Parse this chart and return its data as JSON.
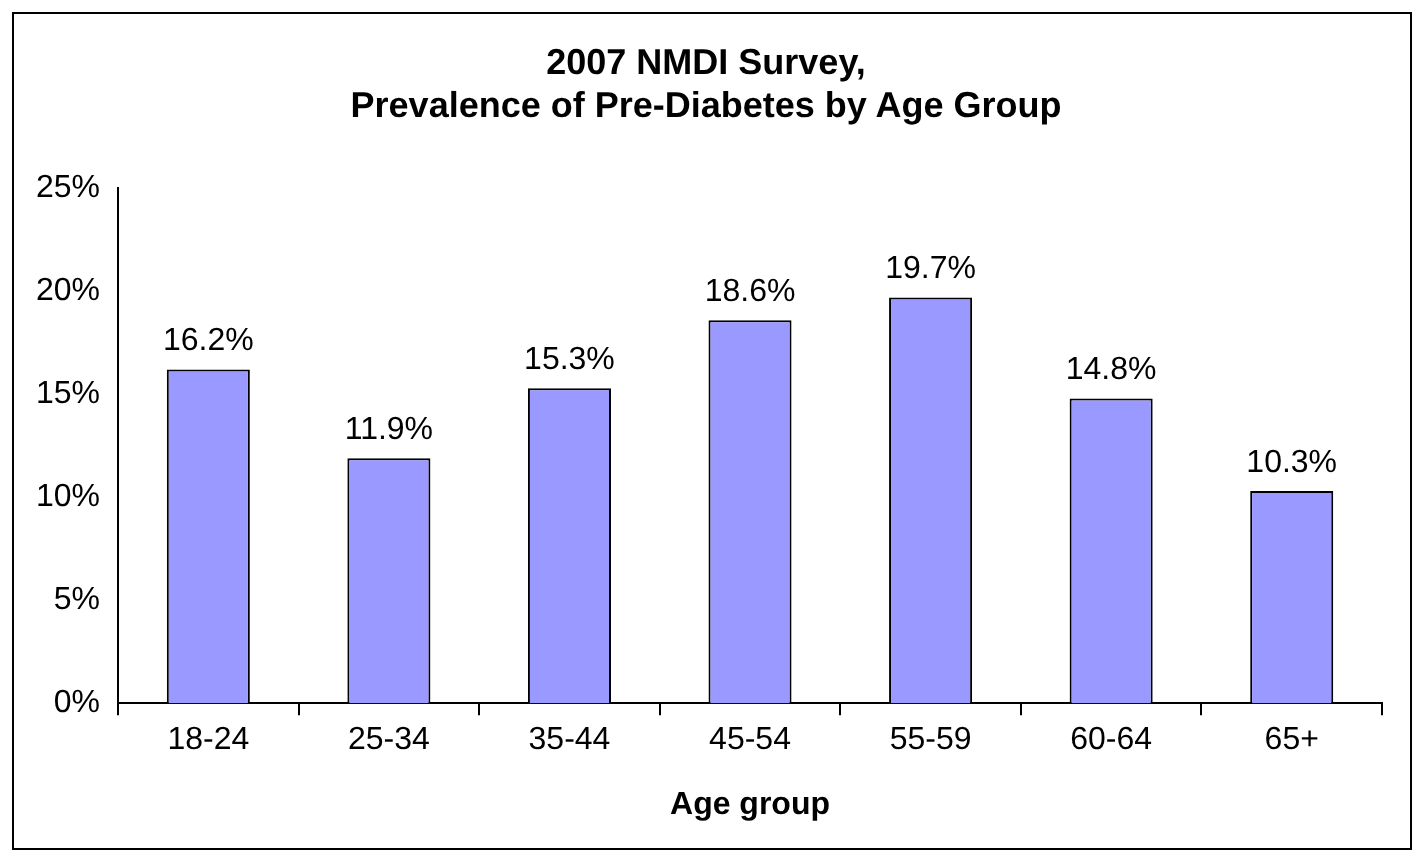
{
  "chart_data": {
    "type": "bar",
    "title": "2007 NMDI Survey,\nPrevalence of Pre-Diabetes by Age Group",
    "xlabel": "Age group",
    "categories": [
      "18-24",
      "25-34",
      "35-44",
      "45-54",
      "55-59",
      "60-64",
      "65+"
    ],
    "values": [
      16.2,
      11.9,
      15.3,
      18.6,
      19.7,
      14.8,
      10.3
    ],
    "value_labels": [
      "16.2%",
      "11.9%",
      "15.3%",
      "18.6%",
      "19.7%",
      "14.8%",
      "10.3%"
    ],
    "color": "#9999ff",
    "ylim": [
      0,
      25
    ],
    "yticks": [
      {
        "value": 0,
        "label": "0%"
      },
      {
        "value": 5,
        "label": "5%"
      },
      {
        "value": 10,
        "label": "10%"
      },
      {
        "value": 15,
        "label": "15%"
      },
      {
        "value": 20,
        "label": "20%"
      },
      {
        "value": 25,
        "label": "25%"
      }
    ],
    "grid": false,
    "legend": false
  }
}
